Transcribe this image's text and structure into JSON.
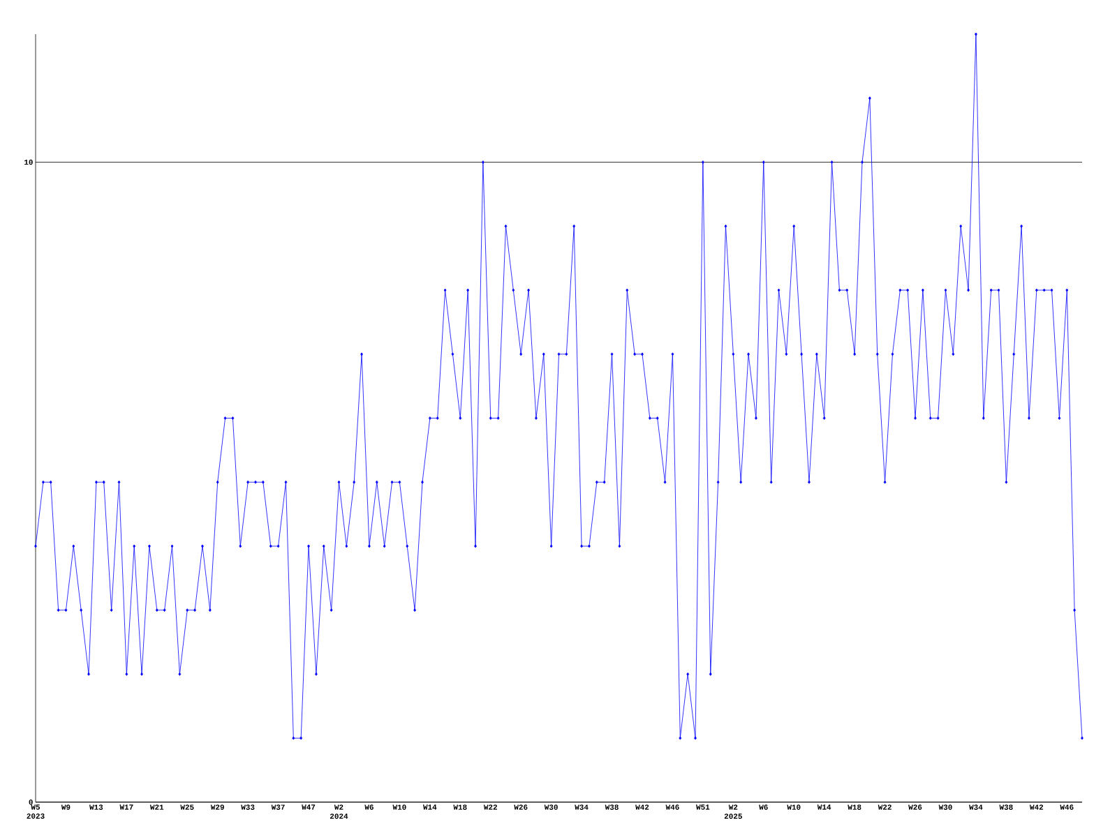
{
  "chart_data": {
    "type": "line",
    "categories": [
      "W5 2023",
      null,
      null,
      null,
      "W9",
      null,
      null,
      null,
      "W13",
      null,
      null,
      null,
      "W17",
      null,
      null,
      null,
      "W21",
      null,
      null,
      null,
      "W25",
      null,
      null,
      null,
      "W29",
      null,
      null,
      null,
      "W33",
      null,
      null,
      null,
      "W37",
      null,
      null,
      null,
      "W47",
      null,
      null,
      null,
      "W2 2024",
      null,
      null,
      null,
      "W6",
      null,
      null,
      null,
      "W10",
      null,
      null,
      null,
      "W14",
      null,
      null,
      null,
      "W18",
      null,
      null,
      null,
      "W22",
      null,
      null,
      null,
      "W26",
      null,
      null,
      null,
      "W30",
      null,
      null,
      null,
      "W34",
      null,
      null,
      null,
      "W38",
      null,
      null,
      null,
      "W42",
      null,
      null,
      null,
      "W46",
      null,
      null,
      null,
      "W51",
      null,
      null,
      null,
      "W2 2025",
      null,
      null,
      null,
      "W6",
      null,
      null,
      null,
      "W10",
      null,
      null,
      null,
      "W14",
      null,
      null,
      null,
      "W18",
      null,
      null,
      null,
      "W22",
      null,
      null,
      null,
      "W26",
      null,
      null,
      null,
      "W30",
      null,
      null,
      null,
      "W34",
      null,
      null,
      null,
      "W38",
      null,
      null,
      null,
      "W42",
      null,
      null,
      null,
      "W46",
      null,
      null
    ],
    "series": [
      {
        "color": "#0000ff",
        "values": [
          4,
          5,
          5,
          3,
          3,
          4,
          3,
          2,
          5,
          5,
          3,
          5,
          2,
          4,
          2,
          4,
          3,
          3,
          4,
          2,
          3,
          3,
          4,
          3,
          5,
          6,
          6,
          4,
          5,
          5,
          5,
          4,
          4,
          5,
          1,
          1,
          4,
          2,
          4,
          3,
          5,
          4,
          5,
          7,
          4,
          5,
          4,
          5,
          5,
          4,
          3,
          5,
          6,
          6,
          8,
          7,
          6,
          8,
          4,
          10,
          6,
          6,
          9,
          8,
          7,
          8,
          6,
          7,
          4,
          7,
          7,
          9,
          4,
          4,
          5,
          5,
          7,
          4,
          8,
          7,
          7,
          6,
          6,
          5,
          7,
          1,
          2,
          1,
          10,
          2,
          5,
          9,
          7,
          5,
          7,
          6,
          10,
          5,
          8,
          7,
          9,
          7,
          5,
          7,
          6,
          10,
          8,
          8,
          7,
          10,
          11,
          7,
          5,
          7,
          8,
          8,
          6,
          8,
          6,
          6,
          8,
          7,
          9,
          8,
          12,
          6,
          8,
          8,
          5,
          7,
          9,
          6,
          8,
          8,
          8,
          6,
          8,
          3,
          1
        ]
      }
    ],
    "ylim": [
      0,
      12
    ],
    "yticks": [
      0,
      10
    ],
    "grid": "y",
    "marker": "diamond",
    "line_style": "solid"
  }
}
